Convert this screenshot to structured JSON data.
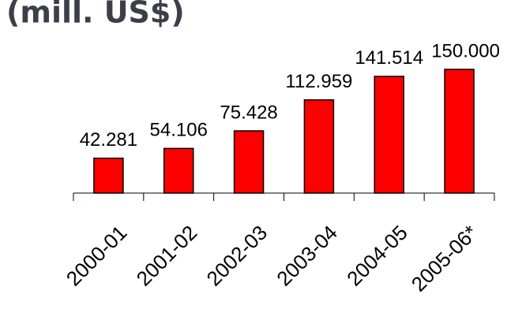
{
  "chart_data": {
    "type": "bar",
    "title": "(mill. US$)",
    "categories": [
      "2000-01",
      "2001-02",
      "2002-03",
      "2003-04",
      "2004-05",
      "2005-06*"
    ],
    "values": [
      42281,
      54106,
      75428,
      112959,
      141514,
      150000
    ],
    "value_labels": [
      "42.281",
      "54.106",
      "75.428",
      "112.959",
      "141.514",
      "150.000"
    ],
    "color": "#ff0000"
  }
}
